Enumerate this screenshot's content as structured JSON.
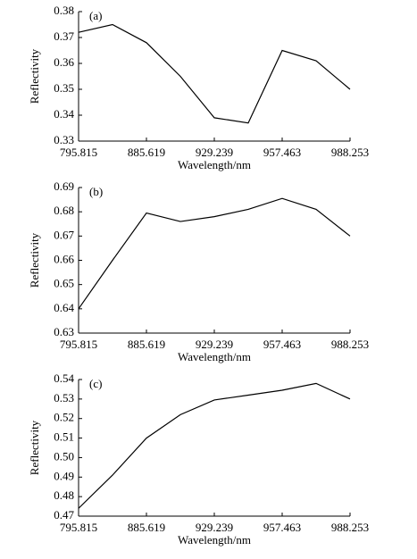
{
  "chart_data": [
    {
      "type": "line",
      "label": "(a)",
      "xlabel": "Wavelength/nm",
      "ylabel": "Reflectivity",
      "color": "#000000",
      "categories": [
        "795.815",
        null,
        "885.619",
        null,
        "929.239",
        null,
        "957.463",
        null,
        "988.253"
      ],
      "values": [
        0.372,
        0.375,
        0.368,
        0.355,
        0.339,
        0.337,
        0.365,
        0.361,
        0.35
      ],
      "ylim": [
        0.33,
        0.38
      ],
      "yticks": [
        0.33,
        0.34,
        0.35,
        0.36,
        0.37,
        0.38
      ]
    },
    {
      "type": "line",
      "label": "(b)",
      "xlabel": "Wavelength/nm",
      "ylabel": "Reflectivity",
      "color": "#000000",
      "categories": [
        "795.815",
        null,
        "885.619",
        null,
        "929.239",
        null,
        "957.463",
        null,
        "988.253"
      ],
      "values": [
        0.64,
        0.66,
        0.6795,
        0.676,
        0.678,
        0.681,
        0.6855,
        0.681,
        0.67
      ],
      "ylim": [
        0.63,
        0.69
      ],
      "yticks": [
        0.63,
        0.64,
        0.65,
        0.66,
        0.67,
        0.68,
        0.69
      ]
    },
    {
      "type": "line",
      "label": "(c)",
      "xlabel": "Wavelength/nm",
      "ylabel": "Reflectivity",
      "color": "#000000",
      "categories": [
        "795.815",
        null,
        "885.619",
        null,
        "929.239",
        null,
        "957.463",
        null,
        "988.253"
      ],
      "values": [
        0.474,
        0.491,
        0.51,
        0.522,
        0.5295,
        0.532,
        0.5345,
        0.538,
        0.53
      ],
      "ylim": [
        0.47,
        0.54
      ],
      "yticks": [
        0.47,
        0.48,
        0.49,
        {
          "value": 0.5,
          "label": "0.50"
        },
        0.51,
        0.52,
        0.53,
        0.54
      ]
    }
  ]
}
